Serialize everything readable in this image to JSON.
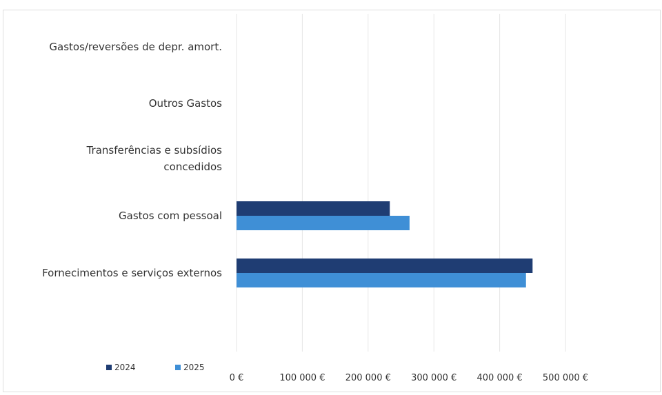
{
  "chart_data": {
    "type": "bar",
    "orientation": "horizontal",
    "categories": [
      [
        "Gastos/reversões de depr. amort."
      ],
      [
        "Outros Gastos"
      ],
      [
        "Transferências e subsídios",
        "concedidos"
      ],
      [
        "Gastos com pessoal"
      ],
      [
        "Fornecimentos e serviços externos"
      ]
    ],
    "series": [
      {
        "name": "2024",
        "color": "#1f3d73",
        "values": [
          0,
          0,
          0,
          233000,
          450000
        ]
      },
      {
        "name": "2025",
        "color": "#3f8fd6",
        "values": [
          0,
          0,
          0,
          263000,
          440000
        ]
      }
    ],
    "x_ticks": [
      "0 €",
      "100 000 €",
      "200 000 €",
      "300 000 €",
      "400 000 €",
      "500 000 €"
    ],
    "xlim": [
      0,
      500000
    ],
    "grid": "vertical",
    "legend_position": "bottom-left"
  }
}
